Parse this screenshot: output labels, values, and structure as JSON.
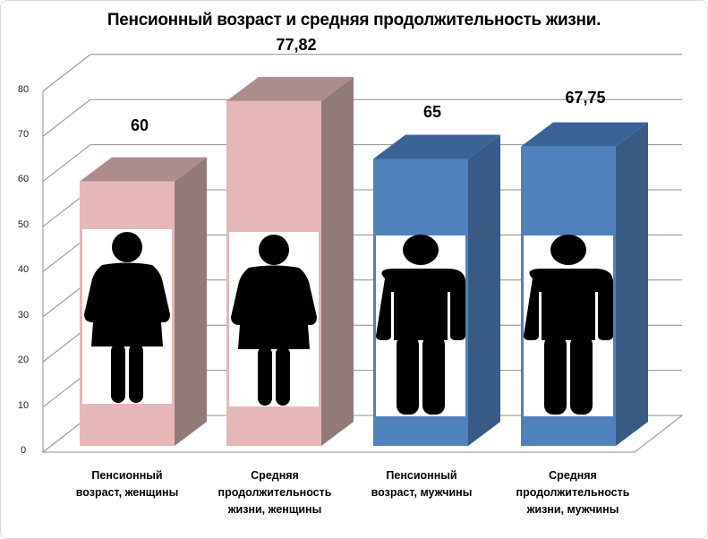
{
  "chart_data": {
    "type": "bar",
    "style": "3d-column",
    "title": "Пенсионный возраст и средняя продолжительность жизни.",
    "xlabel": "",
    "ylabel": "",
    "ylim": [
      0,
      80
    ],
    "yticks": [
      "0",
      "10",
      "20",
      "30",
      "40",
      "50",
      "60",
      "70",
      "80"
    ],
    "grid": true,
    "legend": null,
    "categories": [
      "Пенсионный возраст, женщины",
      "Средняя продолжительность жизни, женщины",
      "Пенсионный возраст, мужчины",
      "Средняя продолжительность жизни, мужчины"
    ],
    "values": [
      60,
      77.82,
      65,
      67.75
    ],
    "data_labels": [
      "60",
      "77,82",
      "65",
      "67,75"
    ],
    "bar_colors": [
      "#e5b8b7",
      "#e5b8b7",
      "#4f81bd",
      "#4f81bd"
    ],
    "bar_icons": [
      "female-figure",
      "female-figure",
      "male-figure",
      "male-figure"
    ]
  },
  "labels": {
    "title": "Пенсионный возраст и средняя продолжительность жизни.",
    "y": [
      "0",
      "10",
      "20",
      "30",
      "40",
      "50",
      "60",
      "70",
      "80"
    ],
    "values": [
      "60",
      "77,82",
      "65",
      "67,75"
    ],
    "x": [
      [
        "Пенсионный",
        "возраст, женщины"
      ],
      [
        "Средняя",
        "продолжительность",
        "жизни, женщины"
      ],
      [
        "Пенсионный",
        "возраст, мужчины"
      ],
      [
        "Средняя",
        "продолжительность",
        "жизни, мужчины"
      ]
    ]
  }
}
